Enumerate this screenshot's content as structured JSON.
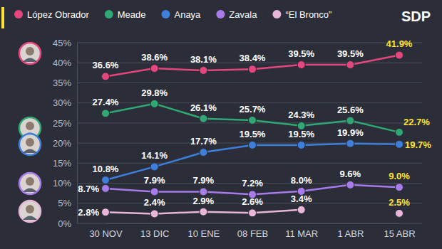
{
  "chart_data": {
    "type": "line",
    "annotations": [
      "SDP"
    ],
    "categories": [
      "30 NOV",
      "13 DIC",
      "10 ENE",
      "08 FEB",
      "11 MAR",
      "1 ABR",
      "15 ABR"
    ],
    "series": [
      {
        "name": "López Obrador",
        "color": "#e4467d",
        "values": [
          36.6,
          38.6,
          38.1,
          38.4,
          39.5,
          39.5,
          41.9
        ],
        "value_labels": [
          "36.6%",
          "38.6%",
          "38.1%",
          "38.4%",
          "39.5%",
          "39.5%",
          "41.9%"
        ]
      },
      {
        "name": "Meade",
        "color": "#2fa873",
        "values": [
          27.4,
          29.8,
          26.1,
          25.7,
          24.3,
          25.6,
          22.7
        ],
        "value_labels": [
          "27.4%",
          "29.8%",
          "26.1%",
          "25.7%",
          "24.3%",
          "25.6%",
          "22.7%"
        ]
      },
      {
        "name": "Anaya",
        "color": "#3d7fdb",
        "values": [
          10.8,
          14.1,
          17.7,
          19.5,
          19.5,
          19.9,
          19.7
        ],
        "value_labels": [
          "10.8%",
          "14.1%",
          "17.7%",
          "19.5%",
          "19.5%",
          "19.9%",
          "19.7%"
        ]
      },
      {
        "name": "Zavala",
        "color": "#a77be9",
        "values": [
          8.7,
          7.9,
          7.9,
          7.2,
          8.0,
          9.6,
          9.0
        ],
        "value_labels": [
          "8.7%",
          "7.9%",
          "7.9%",
          "7.2%",
          "8.0%",
          "9.6%",
          "9.0%"
        ]
      },
      {
        "name": "“El Bronco”",
        "color": "#e9b6da",
        "values": [
          2.8,
          2.4,
          2.9,
          2.6,
          3.4,
          null,
          2.5
        ],
        "value_labels": [
          "2.8%",
          "2.4%",
          "2.9%",
          "2.6%",
          "3.4%",
          null,
          "2.5%"
        ]
      }
    ],
    "ylim": [
      0,
      45
    ],
    "yticks": [
      {
        "value": 0,
        "label": "0%"
      },
      {
        "value": 5,
        "label": "5%"
      },
      {
        "value": 10,
        "label": "10%"
      },
      {
        "value": 15,
        "label": "15%"
      },
      {
        "value": 20,
        "label": "20%"
      },
      {
        "value": 25,
        "label": "25%"
      },
      {
        "value": 30,
        "label": "30%"
      },
      {
        "value": 35,
        "label": "35%"
      },
      {
        "value": 40,
        "label": "40%"
      },
      {
        "value": 45,
        "label": "45%"
      }
    ],
    "grid": true,
    "data_labels": true,
    "legend": "top",
    "marker": "circle"
  }
}
